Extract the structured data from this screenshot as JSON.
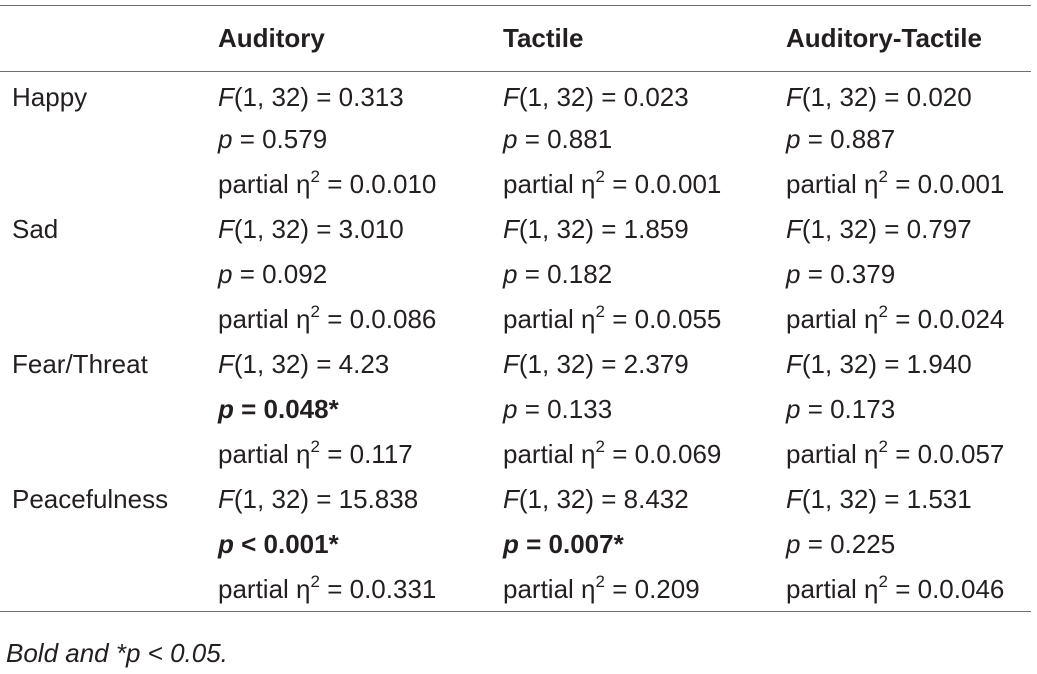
{
  "table": {
    "headers": [
      "",
      "Auditory",
      "Tactile",
      "Auditory-Tactile"
    ],
    "groups": [
      {
        "label": "Happy",
        "rows": [
          [
            {
              "var": "F",
              "text": "(1, 32) = 0.313",
              "bold": false
            },
            {
              "var": "F",
              "text": "(1, 32) = 0.023",
              "bold": false
            },
            {
              "var": "F",
              "text": "(1, 32) = 0.020",
              "bold": false
            }
          ],
          [
            {
              "var": "p",
              "text": " = 0.579",
              "bold": false
            },
            {
              "var": "p",
              "text": " = 0.881",
              "bold": false
            },
            {
              "var": "p",
              "text": " = 0.887",
              "bold": false
            }
          ],
          [
            {
              "eta": true,
              "text": " = 0.0.010"
            },
            {
              "eta": true,
              "text": " = 0.0.001"
            },
            {
              "eta": true,
              "text": " = 0.0.001"
            }
          ]
        ]
      },
      {
        "label": "Sad",
        "rows": [
          [
            {
              "var": "F",
              "text": "(1, 32) = 3.010",
              "bold": false
            },
            {
              "var": "F",
              "text": "(1, 32) = 1.859",
              "bold": false
            },
            {
              "var": "F",
              "text": "(1, 32) = 0.797",
              "bold": false
            }
          ],
          [
            {
              "var": "p",
              "text": " = 0.092",
              "bold": false
            },
            {
              "var": "p",
              "text": " = 0.182",
              "bold": false
            },
            {
              "var": "p",
              "text": " = 0.379",
              "bold": false
            }
          ],
          [
            {
              "eta": true,
              "text": " = 0.0.086"
            },
            {
              "eta": true,
              "text": " = 0.0.055"
            },
            {
              "eta": true,
              "text": " = 0.0.024"
            }
          ]
        ]
      },
      {
        "label": "Fear/Threat",
        "rows": [
          [
            {
              "var": "F",
              "text": "(1, 32) = 4.23",
              "bold": false
            },
            {
              "var": "F",
              "text": "(1, 32) = 2.379",
              "bold": false
            },
            {
              "var": "F",
              "text": "(1, 32) = 1.940",
              "bold": false
            }
          ],
          [
            {
              "var": "p",
              "text": " = 0.048*",
              "bold": true
            },
            {
              "var": "p",
              "text": " = 0.133",
              "bold": false
            },
            {
              "var": "p",
              "text": " = 0.173",
              "bold": false
            }
          ],
          [
            {
              "eta": true,
              "text": " = 0.117"
            },
            {
              "eta": true,
              "text": " = 0.0.069"
            },
            {
              "eta": true,
              "text": " = 0.0.057"
            }
          ]
        ]
      },
      {
        "label": "Peacefulness",
        "rows": [
          [
            {
              "var": "F",
              "text": "(1, 32) = 15.838",
              "bold": false
            },
            {
              "var": "F",
              "text": "(1, 32) = 8.432",
              "bold": false
            },
            {
              "var": "F",
              "text": "(1, 32) = 1.531",
              "bold": false
            }
          ],
          [
            {
              "var": "p",
              "text": " < 0.001*",
              "bold": true
            },
            {
              "var": "p",
              "text": " = 0.007*",
              "bold": true
            },
            {
              "var": "p",
              "text": " = 0.225",
              "bold": false
            }
          ],
          [
            {
              "eta": true,
              "text": " = 0.0.331"
            },
            {
              "eta": true,
              "text": " = 0.209"
            },
            {
              "eta": true,
              "text": " = 0.0.046"
            }
          ]
        ]
      }
    ],
    "eta_prefix": "partial ",
    "eta_symbol": "η",
    "eta_exponent": "2"
  },
  "footnote": "Bold and *p < 0.05."
}
